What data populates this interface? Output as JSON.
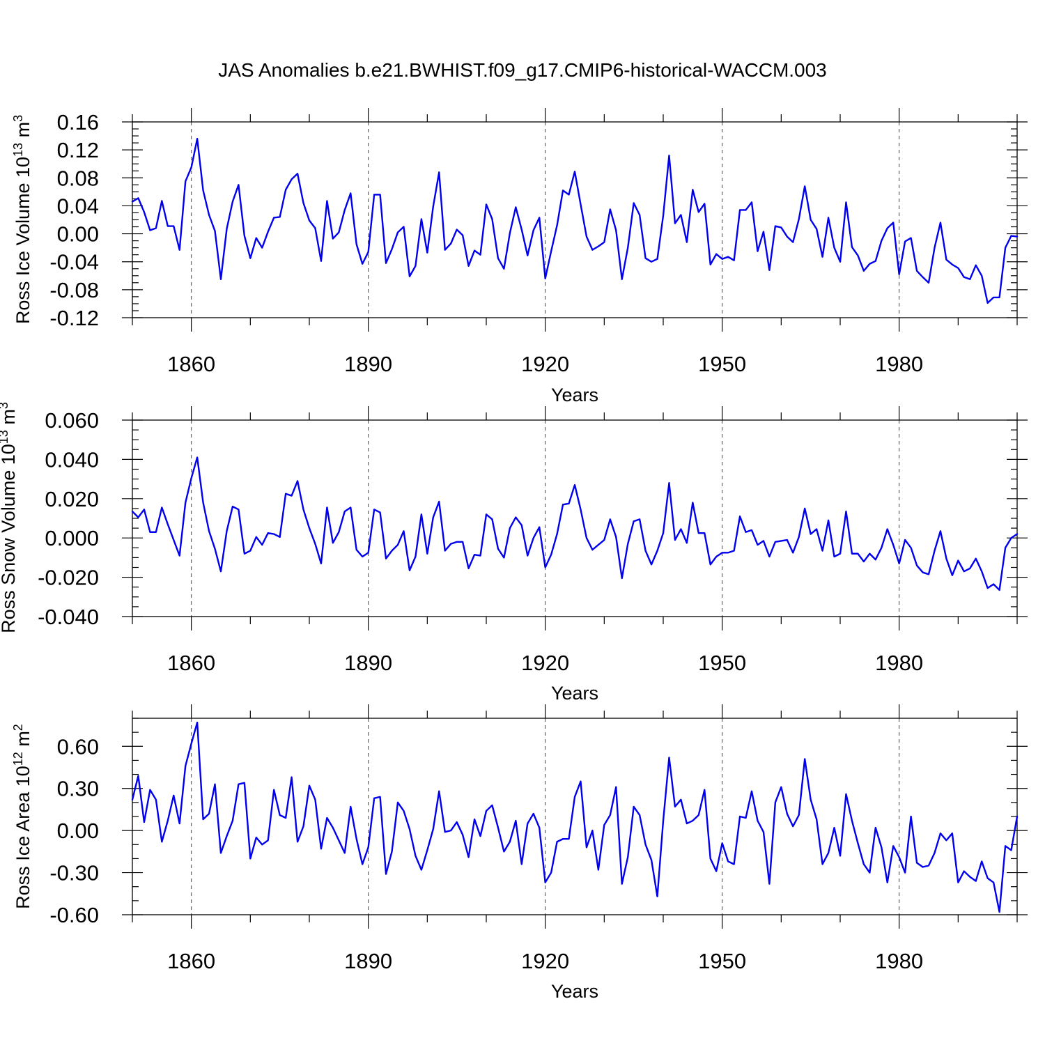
{
  "title": "JAS Anomalies b.e21.BWHIST.f09_g17.CMIP6-historical-WACCM.003",
  "colors": {
    "series": "#0000ee",
    "axis": "#000000",
    "grid": "#555555"
  },
  "chart_data": [
    {
      "type": "line",
      "name": "ross-ice-volume",
      "xlabel": "Years",
      "ylabel": {
        "text": "Ross Ice Volume 10",
        "exponent": "13",
        "unit": " m",
        "unit_exponent": "3"
      },
      "xlim": [
        1850,
        2000
      ],
      "ylim": [
        -0.12,
        0.16
      ],
      "yticks": [
        -0.12,
        -0.08,
        -0.04,
        0.0,
        0.04,
        0.08,
        0.12,
        0.16
      ],
      "ytick_labels": [
        "-0.12",
        "-0.08",
        "-0.04",
        "0.00",
        "0.04",
        "0.08",
        "0.12",
        "0.16"
      ],
      "yminor_step": 0.01,
      "xticks": [
        1860,
        1890,
        1920,
        1950,
        1980
      ],
      "xtick_labels": [
        "1860",
        "1890",
        "1920",
        "1950",
        "1980"
      ],
      "xminor_step": 10,
      "x_start": 1850,
      "x_step": 1,
      "values": [
        0.046,
        0.051,
        0.031,
        0.005,
        0.008,
        0.047,
        0.011,
        0.011,
        -0.023,
        0.075,
        0.095,
        0.136,
        0.062,
        0.027,
        0.004,
        -0.065,
        0.007,
        0.046,
        0.07,
        -0.003,
        -0.035,
        -0.006,
        -0.02,
        0.003,
        0.023,
        0.024,
        0.063,
        0.078,
        0.086,
        0.044,
        0.019,
        0.008,
        -0.039,
        0.047,
        -0.007,
        0.002,
        0.034,
        0.058,
        -0.015,
        -0.043,
        -0.026,
        0.056,
        0.056,
        -0.042,
        -0.022,
        0.002,
        0.01,
        -0.061,
        -0.046,
        0.021,
        -0.027,
        0.039,
        0.088,
        -0.023,
        -0.014,
        0.006,
        -0.002,
        -0.046,
        -0.024,
        -0.03,
        0.042,
        0.021,
        -0.035,
        -0.05,
        0.001,
        0.038,
        0.006,
        -0.031,
        0.005,
        0.023,
        -0.064,
        -0.025,
        0.012,
        0.062,
        0.056,
        0.089,
        0.042,
        -0.004,
        -0.023,
        -0.018,
        -0.012,
        0.035,
        0.005,
        -0.065,
        -0.02,
        0.044,
        0.027,
        -0.035,
        -0.04,
        -0.036,
        0.026,
        0.112,
        0.015,
        0.027,
        -0.012,
        0.063,
        0.031,
        0.043,
        -0.044,
        -0.029,
        -0.036,
        -0.033,
        -0.038,
        0.034,
        0.034,
        0.045,
        -0.025,
        0.003,
        -0.052,
        0.011,
        0.009,
        -0.004,
        -0.012,
        0.021,
        0.068,
        0.02,
        0.007,
        -0.033,
        0.023,
        -0.02,
        -0.04,
        0.045,
        -0.019,
        -0.031,
        -0.053,
        -0.043,
        -0.039,
        -0.01,
        0.008,
        0.016,
        -0.058,
        -0.011,
        -0.006,
        -0.053,
        -0.062,
        -0.07,
        -0.02,
        0.016,
        -0.037,
        -0.044,
        -0.049,
        -0.062,
        -0.065,
        -0.045,
        -0.06,
        -0.099,
        -0.091,
        -0.091,
        -0.02,
        -0.003,
        -0.004
      ]
    },
    {
      "type": "line",
      "name": "ross-snow-volume",
      "xlabel": "Years",
      "ylabel": {
        "text": "Ross Snow Volume 10",
        "exponent": "13",
        "unit": " m",
        "unit_exponent": "3"
      },
      "xlim": [
        1850,
        2000
      ],
      "ylim": [
        -0.04,
        0.06
      ],
      "yticks": [
        -0.04,
        -0.02,
        0.0,
        0.02,
        0.04,
        0.06
      ],
      "ytick_labels": [
        "-0.040",
        "-0.020",
        "0.000",
        "0.020",
        "0.040",
        "0.060"
      ],
      "yminor_step": 0.005,
      "xticks": [
        1860,
        1890,
        1920,
        1950,
        1980
      ],
      "xtick_labels": [
        "1860",
        "1890",
        "1920",
        "1950",
        "1980"
      ],
      "xminor_step": 10,
      "x_start": 1850,
      "x_step": 1,
      "values": [
        0.0135,
        0.0105,
        0.0145,
        0.003,
        0.003,
        0.0155,
        0.007,
        -0.001,
        -0.009,
        0.018,
        0.0305,
        0.041,
        0.018,
        0.0035,
        -0.0055,
        -0.017,
        0.0035,
        0.016,
        0.0145,
        -0.008,
        -0.0065,
        0.0005,
        -0.0035,
        0.0025,
        0.002,
        0.0005,
        0.0225,
        0.0215,
        0.029,
        0.0145,
        0.005,
        -0.003,
        -0.013,
        0.0155,
        -0.0025,
        0.003,
        0.0135,
        0.0155,
        -0.006,
        -0.0095,
        -0.0075,
        0.0145,
        0.013,
        -0.0105,
        -0.0065,
        -0.0035,
        0.0035,
        -0.0165,
        -0.0095,
        0.012,
        -0.008,
        0.0105,
        0.0185,
        -0.0065,
        -0.003,
        -0.002,
        -0.002,
        -0.0155,
        -0.0085,
        -0.009,
        0.012,
        0.0095,
        -0.0055,
        -0.01,
        0.005,
        0.0105,
        0.0065,
        -0.009,
        0.0,
        0.0055,
        -0.015,
        -0.0085,
        0.002,
        0.017,
        0.0175,
        0.027,
        0.0145,
        0.0,
        -0.006,
        -0.0035,
        -0.001,
        0.0095,
        0.0005,
        -0.0205,
        -0.003,
        0.0085,
        0.0095,
        -0.0065,
        -0.0135,
        -0.0065,
        0.0025,
        0.028,
        -0.001,
        0.0045,
        -0.0025,
        0.018,
        0.0025,
        0.0025,
        -0.0135,
        -0.0095,
        -0.0075,
        -0.0075,
        -0.0065,
        0.011,
        0.003,
        0.004,
        -0.0035,
        -0.0015,
        -0.0095,
        -0.002,
        -0.0015,
        -0.001,
        -0.0075,
        0.0005,
        0.015,
        0.002,
        0.0045,
        -0.0065,
        0.009,
        -0.0095,
        -0.008,
        0.0135,
        -0.008,
        -0.008,
        -0.012,
        -0.008,
        -0.011,
        -0.005,
        0.0045,
        -0.0035,
        -0.013,
        -0.001,
        -0.005,
        -0.014,
        -0.0175,
        -0.0185,
        -0.0065,
        0.0035,
        -0.0105,
        -0.019,
        -0.0115,
        -0.017,
        -0.0155,
        -0.0105,
        -0.017,
        -0.0255,
        -0.0235,
        -0.0265,
        -0.005,
        0.0,
        0.002
      ]
    },
    {
      "type": "line",
      "name": "ross-ice-area",
      "xlabel": "Years",
      "ylabel": {
        "text": "Ross Ice Area 10",
        "exponent": "12",
        "unit": " m",
        "unit_exponent": "2"
      },
      "xlim": [
        1850,
        2000
      ],
      "ylim": [
        -0.6,
        0.8
      ],
      "yticks": [
        -0.6,
        -0.3,
        0.0,
        0.3,
        0.6
      ],
      "ytick_labels": [
        "-0.60",
        "-0.30",
        "0.00",
        "0.30",
        "0.60"
      ],
      "yminor_step": 0.1,
      "xticks": [
        1860,
        1890,
        1920,
        1950,
        1980
      ],
      "xtick_labels": [
        "1860",
        "1890",
        "1920",
        "1950",
        "1980"
      ],
      "xminor_step": 10,
      "x_start": 1850,
      "x_step": 1,
      "values": [
        0.22,
        0.39,
        0.06,
        0.29,
        0.22,
        -0.08,
        0.07,
        0.25,
        0.05,
        0.46,
        0.62,
        0.77,
        0.08,
        0.12,
        0.33,
        -0.16,
        -0.04,
        0.07,
        0.33,
        0.34,
        -0.2,
        -0.05,
        -0.1,
        -0.07,
        0.29,
        0.11,
        0.09,
        0.38,
        -0.08,
        0.03,
        0.32,
        0.22,
        -0.13,
        0.09,
        0.02,
        -0.07,
        -0.16,
        0.17,
        -0.06,
        -0.24,
        -0.12,
        0.23,
        0.24,
        -0.31,
        -0.15,
        0.2,
        0.14,
        0.01,
        -0.18,
        -0.28,
        -0.14,
        0.01,
        0.28,
        -0.01,
        0.0,
        0.06,
        -0.03,
        -0.19,
        0.08,
        -0.04,
        0.14,
        0.18,
        0.02,
        -0.15,
        -0.08,
        0.07,
        -0.24,
        0.05,
        0.12,
        0.02,
        -0.37,
        -0.3,
        -0.08,
        -0.06,
        -0.06,
        0.24,
        0.35,
        -0.12,
        0.0,
        -0.28,
        0.04,
        0.11,
        0.31,
        -0.38,
        -0.19,
        0.17,
        0.11,
        -0.1,
        -0.21,
        -0.47,
        0.07,
        0.52,
        0.17,
        0.22,
        0.05,
        0.07,
        0.11,
        0.29,
        -0.2,
        -0.29,
        -0.09,
        -0.22,
        -0.24,
        0.1,
        0.09,
        0.28,
        0.07,
        -0.01,
        -0.38,
        0.2,
        0.31,
        0.12,
        0.03,
        0.11,
        0.51,
        0.22,
        0.08,
        -0.24,
        -0.16,
        0.02,
        -0.18,
        0.26,
        0.07,
        -0.09,
        -0.24,
        -0.3,
        0.02,
        -0.12,
        -0.37,
        -0.11,
        -0.19,
        -0.3,
        0.1,
        -0.23,
        -0.26,
        -0.25,
        -0.16,
        -0.02,
        -0.07,
        -0.02,
        -0.37,
        -0.29,
        -0.33,
        -0.36,
        -0.22,
        -0.34,
        -0.37,
        -0.58,
        -0.11,
        -0.14,
        0.1
      ]
    }
  ]
}
